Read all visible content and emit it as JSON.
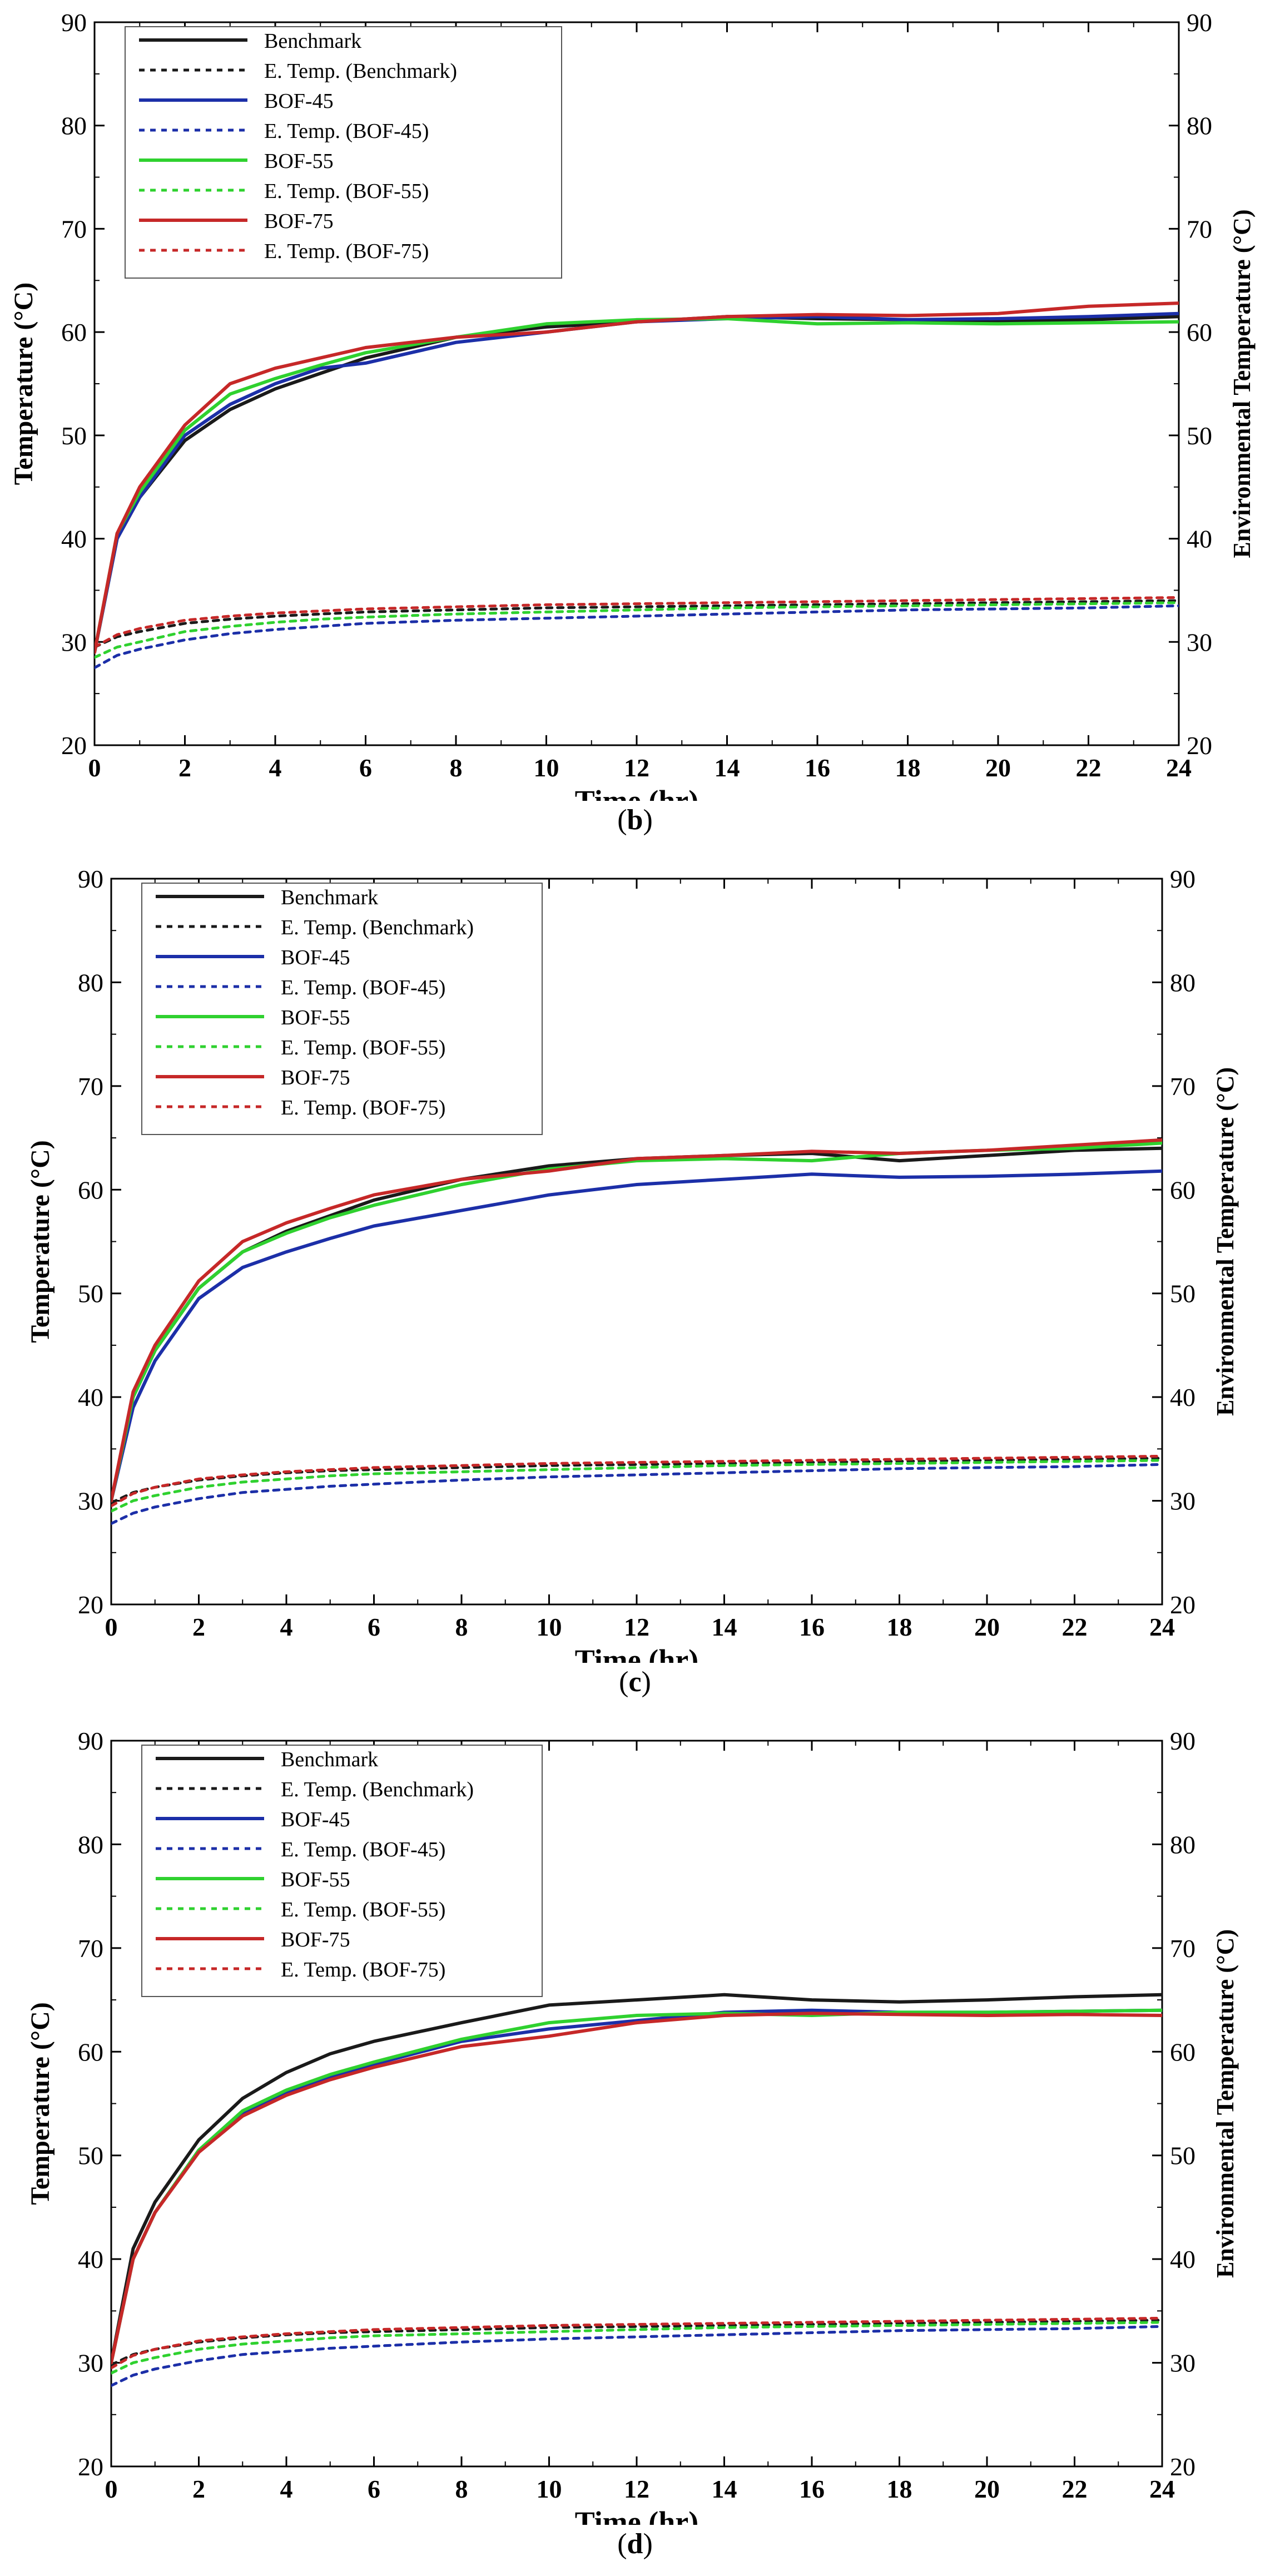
{
  "legend": [
    {
      "label": "Benchmark",
      "color": "#1a1a1a",
      "dashed": false
    },
    {
      "label": "E. Temp. (Benchmark)",
      "color": "#1a1a1a",
      "dashed": true
    },
    {
      "label": "BOF-45",
      "color": "#1c2fa8",
      "dashed": false
    },
    {
      "label": "E. Temp. (BOF-45)",
      "color": "#1c2fa8",
      "dashed": true
    },
    {
      "label": "BOF-55",
      "color": "#2fd12f",
      "dashed": false
    },
    {
      "label": "E. Temp. (BOF-55)",
      "color": "#2fd12f",
      "dashed": true
    },
    {
      "label": "BOF-75",
      "color": "#c62828",
      "dashed": false
    },
    {
      "label": "E. Temp. (BOF-75)",
      "color": "#c62828",
      "dashed": true
    }
  ],
  "chart_data": [
    {
      "type": "line",
      "caption_open": "(",
      "caption_letter": "b",
      "caption_close": ")",
      "xlabel": "Time (hr)",
      "ylabel": "Temperature (°C)",
      "y2label": "Environmental Temperature (°C)",
      "xlim": [
        0,
        24
      ],
      "ylim": [
        20,
        90
      ],
      "y2lim": [
        20,
        90
      ],
      "xticks": [
        0,
        2,
        4,
        6,
        8,
        10,
        12,
        14,
        16,
        18,
        20,
        22,
        24
      ],
      "yticks": [
        20,
        30,
        40,
        50,
        60,
        70,
        80,
        90
      ],
      "x": [
        0,
        0.5,
        1,
        2,
        3,
        4,
        5,
        6,
        8,
        10,
        12,
        14,
        16,
        18,
        20,
        22,
        24
      ],
      "series": [
        {
          "name": "Benchmark",
          "values": [
            29,
            40,
            44,
            49.5,
            52.5,
            54.5,
            56,
            57.5,
            59.5,
            60.5,
            61,
            61.5,
            61.3,
            61.2,
            61.1,
            61.2,
            61.5
          ]
        },
        {
          "name": "E. Temp. (Benchmark)",
          "values": [
            29.5,
            30.5,
            31,
            31.8,
            32.2,
            32.5,
            32.7,
            32.9,
            33.1,
            33.3,
            33.4,
            33.5,
            33.6,
            33.7,
            33.8,
            33.9,
            34
          ]
        },
        {
          "name": "BOF-45",
          "values": [
            29,
            40,
            44,
            50,
            53,
            55,
            56.5,
            57,
            59,
            60,
            61,
            61.3,
            61.5,
            61.2,
            61.3,
            61.5,
            61.8
          ]
        },
        {
          "name": "E. Temp. (BOF-45)",
          "values": [
            27.5,
            28.7,
            29.3,
            30.2,
            30.8,
            31.2,
            31.5,
            31.8,
            32.1,
            32.3,
            32.5,
            32.7,
            32.9,
            33.1,
            33.2,
            33.3,
            33.5
          ]
        },
        {
          "name": "BOF-55",
          "values": [
            29,
            40.5,
            44.5,
            50.5,
            54,
            55.5,
            56.8,
            58,
            59.5,
            60.8,
            61.2,
            61.3,
            60.8,
            60.9,
            60.8,
            60.9,
            61
          ]
        },
        {
          "name": "E. Temp. (BOF-55)",
          "values": [
            28.5,
            29.5,
            30,
            31,
            31.5,
            31.9,
            32.2,
            32.4,
            32.7,
            32.9,
            33.1,
            33.3,
            33.4,
            33.5,
            33.6,
            33.7,
            33.8
          ]
        },
        {
          "name": "BOF-75",
          "values": [
            29,
            40.5,
            45,
            51,
            55,
            56.5,
            57.5,
            58.5,
            59.5,
            60,
            61,
            61.5,
            61.7,
            61.6,
            61.8,
            62.5,
            62.8
          ]
        },
        {
          "name": "E. Temp. (BOF-75)",
          "values": [
            29.5,
            30.7,
            31.3,
            32.1,
            32.5,
            32.8,
            33,
            33.2,
            33.4,
            33.6,
            33.7,
            33.8,
            33.9,
            34,
            34.1,
            34.2,
            34.3
          ]
        }
      ]
    },
    {
      "type": "line",
      "caption_open": "(",
      "caption_letter": "c",
      "caption_close": ")",
      "xlabel": "Time (hr)",
      "ylabel": "Temperature (°C)",
      "y2label": "Environmental Temperature (°C)",
      "xlim": [
        0,
        24
      ],
      "ylim": [
        20,
        90
      ],
      "y2lim": [
        20,
        90
      ],
      "xticks": [
        0,
        2,
        4,
        6,
        8,
        10,
        12,
        14,
        16,
        18,
        20,
        22,
        24
      ],
      "yticks": [
        20,
        30,
        40,
        50,
        60,
        70,
        80,
        90
      ],
      "x": [
        0,
        0.5,
        1,
        2,
        3,
        4,
        5,
        6,
        8,
        10,
        12,
        14,
        16,
        18,
        20,
        22,
        24
      ],
      "series": [
        {
          "name": "Benchmark",
          "values": [
            30,
            40,
            44.5,
            50.5,
            54,
            56,
            57.5,
            59,
            61,
            62.3,
            63,
            63.3,
            63.5,
            62.8,
            63.3,
            63.8,
            64
          ]
        },
        {
          "name": "E. Temp. (Benchmark)",
          "values": [
            29.8,
            30.8,
            31.3,
            32,
            32.4,
            32.7,
            32.9,
            33,
            33.2,
            33.4,
            33.5,
            33.6,
            33.7,
            33.8,
            33.9,
            34,
            34.1
          ]
        },
        {
          "name": "BOF-45",
          "values": [
            30,
            39,
            43.5,
            49.5,
            52.5,
            54,
            55.3,
            56.5,
            58,
            59.5,
            60.5,
            61,
            61.5,
            61.2,
            61.3,
            61.5,
            61.8
          ]
        },
        {
          "name": "E. Temp. (BOF-45)",
          "values": [
            27.8,
            28.8,
            29.4,
            30.2,
            30.8,
            31.1,
            31.4,
            31.6,
            32,
            32.3,
            32.5,
            32.7,
            32.9,
            33.1,
            33.2,
            33.3,
            33.5
          ]
        },
        {
          "name": "BOF-55",
          "values": [
            30,
            40,
            44.5,
            50.5,
            54,
            55.8,
            57.3,
            58.5,
            60.5,
            62,
            62.8,
            63,
            62.8,
            63.5,
            63.8,
            64,
            64.5
          ]
        },
        {
          "name": "E. Temp. (BOF-55)",
          "values": [
            29,
            30,
            30.5,
            31.3,
            31.8,
            32.1,
            32.4,
            32.6,
            32.8,
            33,
            33.2,
            33.4,
            33.5,
            33.6,
            33.7,
            33.8,
            33.9
          ]
        },
        {
          "name": "BOF-75",
          "values": [
            30,
            40.5,
            45,
            51.2,
            55,
            56.8,
            58.2,
            59.5,
            61,
            61.8,
            63,
            63.3,
            63.7,
            63.5,
            63.8,
            64.3,
            64.8
          ]
        },
        {
          "name": "E. Temp. (BOF-75)",
          "values": [
            29.5,
            30.7,
            31.3,
            32.1,
            32.5,
            32.8,
            33,
            33.2,
            33.4,
            33.6,
            33.7,
            33.8,
            33.9,
            34,
            34.1,
            34.2,
            34.3
          ]
        }
      ]
    },
    {
      "type": "line",
      "caption_open": "(",
      "caption_letter": "d",
      "caption_close": ")",
      "xlabel": "Time (hr)",
      "ylabel": "Temperature (°C)",
      "y2label": "Environmental Temperature (°C)",
      "xlim": [
        0,
        24
      ],
      "ylim": [
        20,
        90
      ],
      "y2lim": [
        20,
        90
      ],
      "xticks": [
        0,
        2,
        4,
        6,
        8,
        10,
        12,
        14,
        16,
        18,
        20,
        22,
        24
      ],
      "yticks": [
        20,
        30,
        40,
        50,
        60,
        70,
        80,
        90
      ],
      "x": [
        0,
        0.5,
        1,
        2,
        3,
        4,
        5,
        6,
        8,
        10,
        12,
        14,
        16,
        18,
        20,
        22,
        24
      ],
      "series": [
        {
          "name": "Benchmark",
          "values": [
            30,
            41,
            45.5,
            51.5,
            55.5,
            58,
            59.8,
            61,
            62.8,
            64.5,
            65,
            65.5,
            65,
            64.8,
            65,
            65.3,
            65.5
          ]
        },
        {
          "name": "E. Temp. (Benchmark)",
          "values": [
            29.8,
            30.8,
            31.3,
            32,
            32.4,
            32.7,
            32.9,
            33,
            33.2,
            33.4,
            33.5,
            33.6,
            33.7,
            33.8,
            33.9,
            34,
            34.1
          ]
        },
        {
          "name": "BOF-45",
          "values": [
            30,
            40,
            44.5,
            50.5,
            54,
            56,
            57.5,
            58.8,
            61,
            62.2,
            63,
            63.8,
            64,
            63.8,
            63.8,
            63.9,
            64
          ]
        },
        {
          "name": "E. Temp. (BOF-45)",
          "values": [
            27.8,
            28.8,
            29.4,
            30.2,
            30.8,
            31.1,
            31.4,
            31.6,
            32,
            32.3,
            32.5,
            32.7,
            32.9,
            33.1,
            33.2,
            33.3,
            33.5
          ]
        },
        {
          "name": "BOF-55",
          "values": [
            30,
            40,
            44.5,
            50.5,
            54.3,
            56.3,
            57.8,
            59,
            61.2,
            62.8,
            63.5,
            63.7,
            63.5,
            63.8,
            63.8,
            63.9,
            64
          ]
        },
        {
          "name": "E. Temp. (BOF-55)",
          "values": [
            29,
            30,
            30.5,
            31.3,
            31.8,
            32.1,
            32.4,
            32.6,
            32.8,
            33,
            33.2,
            33.4,
            33.5,
            33.6,
            33.7,
            33.8,
            33.9
          ]
        },
        {
          "name": "BOF-75",
          "values": [
            30,
            40,
            44.5,
            50.3,
            53.8,
            55.8,
            57.3,
            58.5,
            60.5,
            61.5,
            62.8,
            63.5,
            63.7,
            63.6,
            63.5,
            63.6,
            63.5
          ]
        },
        {
          "name": "E. Temp. (BOF-75)",
          "values": [
            29.5,
            30.7,
            31.3,
            32.1,
            32.5,
            32.8,
            33,
            33.2,
            33.4,
            33.6,
            33.7,
            33.8,
            33.9,
            34,
            34.1,
            34.2,
            34.3
          ]
        }
      ]
    }
  ]
}
